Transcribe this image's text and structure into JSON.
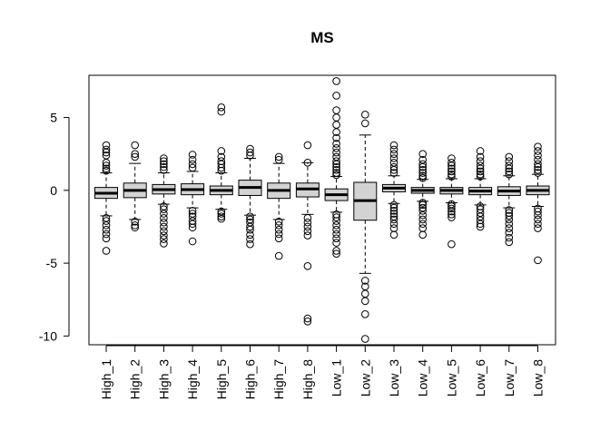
{
  "chart_data": {
    "type": "boxplot",
    "title": "MS",
    "xlabel": "",
    "ylabel": "",
    "ylim": [
      -10.6,
      7.9
    ],
    "yticks": [
      -10,
      -5,
      0,
      5
    ],
    "ytick_labels": [
      "-10",
      "-5",
      "0",
      "5"
    ],
    "grid": false,
    "legend": "none",
    "box_fill": "#d3d3d3",
    "categories": [
      "High_1",
      "High_2",
      "High_3",
      "High_4",
      "High_5",
      "High_6",
      "High_7",
      "High_8",
      "Low_1",
      "Low_2",
      "Low_3",
      "Low_4",
      "Low_5",
      "Low_6",
      "Low_7",
      "Low_8"
    ],
    "boxes": [
      {
        "name": "High_1",
        "whisker_low": -1.75,
        "q1": -0.55,
        "median": -0.2,
        "q3": 0.2,
        "whisker_high": 1.2,
        "outliers": [
          3.1,
          2.8,
          2.6,
          2.4,
          1.9,
          1.7,
          1.5,
          1.35,
          -1.9,
          -2.1,
          -2.4,
          -2.7,
          -3.0,
          -3.3,
          -4.15
        ]
      },
      {
        "name": "High_2",
        "whisker_low": -2.0,
        "q1": -0.5,
        "median": 0.0,
        "q3": 0.5,
        "whisker_high": 1.85,
        "outliers": [
          3.1,
          2.5,
          2.3,
          -2.15,
          -2.4,
          -2.55
        ]
      },
      {
        "name": "High_3",
        "whisker_low": -0.95,
        "q1": -0.25,
        "median": 0.05,
        "q3": 0.4,
        "whisker_high": 1.2,
        "outliers": [
          2.2,
          2.0,
          1.8,
          1.6,
          1.4,
          -1.1,
          -1.3,
          -1.6,
          -1.9,
          -2.2,
          -2.5,
          -2.8,
          -3.1,
          -3.35,
          -3.65
        ]
      },
      {
        "name": "High_4",
        "whisker_low": -1.2,
        "q1": -0.3,
        "median": 0.05,
        "q3": 0.45,
        "whisker_high": 1.3,
        "outliers": [
          2.45,
          2.1,
          1.8,
          1.55,
          -1.4,
          -1.6,
          -1.8,
          -2.1,
          -2.3,
          -2.55,
          -3.5
        ]
      },
      {
        "name": "High_5",
        "whisker_low": -1.3,
        "q1": -0.3,
        "median": 0.0,
        "q3": 0.3,
        "whisker_high": 1.2,
        "outliers": [
          5.7,
          5.4,
          2.7,
          2.3,
          2.0,
          1.8,
          1.55,
          1.35,
          -1.45,
          -1.6,
          -1.8,
          -1.95
        ]
      },
      {
        "name": "High_6",
        "whisker_low": -1.7,
        "q1": -0.35,
        "median": 0.2,
        "q3": 0.7,
        "whisker_high": 2.2,
        "outliers": [
          2.85,
          2.6,
          2.4,
          -1.8,
          -2.0,
          -2.2,
          -2.5,
          -2.7,
          -3.05,
          -3.35,
          -3.7
        ]
      },
      {
        "name": "High_7",
        "whisker_low": -2.0,
        "q1": -0.55,
        "median": 0.0,
        "q3": 0.5,
        "whisker_high": 1.85,
        "outliers": [
          2.3,
          2.1,
          -2.15,
          -2.4,
          -2.7,
          -3.0,
          -3.3,
          -4.5
        ]
      },
      {
        "name": "High_8",
        "whisker_low": -1.65,
        "q1": -0.45,
        "median": 0.1,
        "q3": 0.5,
        "whisker_high": 1.9,
        "outliers": [
          3.1,
          1.9,
          -1.9,
          -2.2,
          -2.5,
          -2.8,
          -3.1,
          -5.2,
          -8.8,
          -9.0
        ]
      },
      {
        "name": "Low_1",
        "whisker_low": -1.5,
        "q1": -0.7,
        "median": -0.3,
        "q3": 0.1,
        "whisker_high": 0.95,
        "outliers": [
          7.5,
          6.5,
          5.5,
          5.0,
          4.5,
          4.0,
          3.6,
          3.2,
          2.9,
          2.6,
          2.3,
          2.0,
          1.8,
          1.6,
          1.4,
          1.2,
          1.05,
          -1.65,
          -1.85,
          -2.1,
          -2.4,
          -2.7,
          -3.0,
          -3.3,
          -3.6,
          -4.15,
          -4.35
        ]
      },
      {
        "name": "Low_2",
        "whisker_low": -5.7,
        "q1": -2.05,
        "median": -0.7,
        "q3": 0.55,
        "whisker_high": 3.8,
        "outliers": [
          5.2,
          4.6,
          -6.2,
          -6.6,
          -7.1,
          -7.6,
          -8.5,
          -10.2
        ]
      },
      {
        "name": "Low_3",
        "whisker_low": -0.9,
        "q1": -0.1,
        "median": 0.15,
        "q3": 0.4,
        "whisker_high": 1.0,
        "outliers": [
          3.1,
          2.8,
          2.5,
          2.2,
          1.9,
          1.6,
          1.4,
          1.2,
          -1.0,
          -1.2,
          -1.4,
          -1.6,
          -1.8,
          -2.0,
          -2.3,
          -2.6,
          -3.05
        ]
      },
      {
        "name": "Low_4",
        "whisker_low": -0.75,
        "q1": -0.2,
        "median": 0.0,
        "q3": 0.2,
        "whisker_high": 0.75,
        "outliers": [
          2.5,
          2.1,
          1.8,
          1.6,
          1.4,
          1.2,
          1.0,
          0.85,
          -0.85,
          -1.0,
          -1.2,
          -1.4,
          -1.7,
          -2.0,
          -2.3,
          -2.6,
          -3.05
        ]
      },
      {
        "name": "Low_5",
        "whisker_low": -0.85,
        "q1": -0.25,
        "median": 0.0,
        "q3": 0.2,
        "whisker_high": 0.8,
        "outliers": [
          2.2,
          1.9,
          1.7,
          1.5,
          1.3,
          1.1,
          0.95,
          -0.95,
          -1.1,
          -1.25,
          -1.45,
          -1.65,
          -1.85,
          -3.7
        ]
      },
      {
        "name": "Low_6",
        "whisker_low": -1.0,
        "q1": -0.3,
        "median": -0.05,
        "q3": 0.2,
        "whisker_high": 0.8,
        "outliers": [
          2.7,
          2.3,
          2.0,
          1.7,
          1.5,
          1.3,
          1.1,
          0.95,
          -1.1,
          -1.3,
          -1.55,
          -1.8,
          -2.05,
          -2.3,
          -2.5
        ]
      },
      {
        "name": "Low_7",
        "whisker_low": -1.2,
        "q1": -0.35,
        "median": -0.05,
        "q3": 0.25,
        "whisker_high": 1.0,
        "outliers": [
          2.3,
          2.0,
          1.7,
          1.5,
          1.3,
          1.1,
          -1.35,
          -1.55,
          -1.75,
          -2.0,
          -2.3,
          -2.6,
          -2.9,
          -3.25,
          -3.55
        ]
      },
      {
        "name": "Low_8",
        "whisker_low": -1.1,
        "q1": -0.3,
        "median": 0.0,
        "q3": 0.3,
        "whisker_high": 1.1,
        "outliers": [
          3.0,
          2.7,
          2.4,
          2.1,
          1.8,
          1.6,
          1.4,
          1.2,
          -1.25,
          -1.45,
          -1.7,
          -2.0,
          -2.3,
          -2.6,
          -4.8
        ]
      }
    ]
  }
}
